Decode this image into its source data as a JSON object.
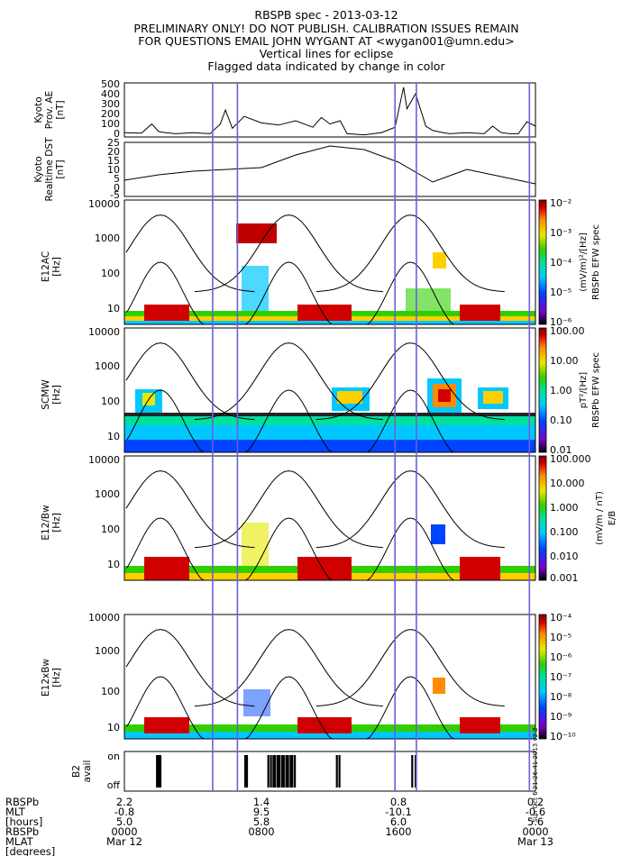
{
  "header": {
    "lines": [
      "RBSPB spec - 2013-03-12",
      "PRELIMINARY ONLY! DO NOT PUBLISH. CALIBRATION ISSUES REMAIN",
      "FOR QUESTIONS EMAIL JOHN WYGANT AT <wygan001@umn.edu>",
      "Vertical lines for eclipse",
      "Flagged data indicated by change in color"
    ]
  },
  "colors": {
    "eclipse_line": "#6f5fd8",
    "trace": "#000000",
    "colormap": [
      "#000000",
      "#7a00c8",
      "#0044ff",
      "#00c8ff",
      "#00e0a0",
      "#30d000",
      "#e8e800",
      "#ff8c00",
      "#d00000",
      "#800000"
    ]
  },
  "chart_data": [
    {
      "type": "line",
      "panel": "kyoto-ae",
      "ylabel": [
        "Kyoto",
        "Prov. AE",
        "[nT]"
      ],
      "ylim": [
        0,
        500
      ],
      "yticks": [
        "500",
        "400",
        "300",
        "200",
        "100",
        "0"
      ],
      "x_hours": [
        0,
        1,
        1.6,
        2,
        2.4,
        3,
        4,
        5,
        5.6,
        5.9,
        6.3,
        7,
        8,
        9,
        10,
        11,
        11.5,
        12,
        12.6,
        13,
        14,
        15,
        15.8,
        16.3,
        16.5,
        17,
        17.6,
        18,
        18.6,
        19,
        20,
        21,
        21.5,
        22,
        22.5,
        23,
        23.5,
        24
      ],
      "values": [
        40,
        35,
        120,
        50,
        40,
        30,
        40,
        30,
        120,
        250,
        80,
        190,
        130,
        110,
        150,
        90,
        180,
        120,
        150,
        30,
        20,
        40,
        90,
        460,
        260,
        400,
        100,
        60,
        40,
        30,
        40,
        30,
        100,
        40,
        30,
        30,
        140,
        100
      ]
    },
    {
      "type": "line",
      "panel": "kyoto-dst",
      "ylabel": [
        "Kyoto",
        "Realtime DST",
        "[nT]"
      ],
      "ylim": [
        -5,
        25
      ],
      "yticks": [
        "25",
        "20",
        "15",
        "10",
        "5",
        "0",
        "-5"
      ],
      "x_hours": [
        0,
        2,
        4,
        6,
        8,
        10,
        12,
        14,
        16,
        18,
        20,
        22,
        24
      ],
      "values": [
        4,
        7,
        9,
        10,
        11,
        18,
        23,
        21,
        14,
        3,
        10,
        6,
        2
      ]
    },
    {
      "type": "heatmap",
      "panel": "e12ac",
      "ylabel": [
        "E12AC",
        "[Hz]"
      ],
      "yticks": [
        "10000",
        "1000",
        "100",
        "10"
      ],
      "colorbar": {
        "unit": "(mV/m)²/[Hz]",
        "title": "RBSPb EFW spec",
        "ticks": [
          "10⁻²",
          "10⁻³",
          "10⁻⁴",
          "10⁻⁵",
          "10⁻⁶"
        ]
      }
    },
    {
      "type": "heatmap",
      "panel": "scmw",
      "ylabel": [
        "SCMW",
        "[Hz]"
      ],
      "yticks": [
        "10000",
        "1000",
        "100",
        "10"
      ],
      "colorbar": {
        "unit": "pT²/[Hz]",
        "title": "RBSPb EFW spec",
        "ticks": [
          "100.00",
          "10.00",
          "1.00",
          "0.10",
          "0.01"
        ]
      }
    },
    {
      "type": "heatmap",
      "panel": "e12-over-bw",
      "ylabel": [
        "E12/Bw",
        "[Hz]"
      ],
      "yticks": [
        "10000",
        "1000",
        "100",
        "10"
      ],
      "colorbar": {
        "unit": "(mV/m / nT)",
        "title": "E/B",
        "ticks": [
          "100.000",
          "10.000",
          "1.000",
          "0.100",
          "0.010",
          "0.001"
        ]
      }
    },
    {
      "type": "heatmap",
      "panel": "e12xbw",
      "ylabel": [
        "E12xBw",
        "[Hz]"
      ],
      "yticks": [
        "10000",
        "1000",
        "100",
        "10"
      ],
      "colorbar": {
        "ticks": [
          "10⁻⁴",
          "10⁻⁵",
          "10⁻⁶",
          "10⁻⁷",
          "10⁻⁸",
          "10⁻⁹",
          "10⁻¹⁰"
        ]
      }
    },
    {
      "type": "bar",
      "panel": "b2-avail",
      "ylabel": [
        "B2",
        "avail"
      ],
      "yticks": [
        "on",
        "off"
      ],
      "avail_hours": [
        1.9,
        2.0,
        2.1,
        7.05,
        7.15,
        8.4,
        8.55,
        8.7,
        8.8,
        8.95,
        9.05,
        9.2,
        9.3,
        9.45,
        9.55,
        9.7,
        9.8,
        9.95,
        12.4,
        12.55,
        16.8,
        17.0
      ]
    }
  ],
  "eclipse_hours": [
    5.15,
    6.6,
    15.8,
    17.05,
    23.65
  ],
  "side_stamp": "Sun Oct  6 21:26:41 2013 v2.2",
  "ephemeris": {
    "labels": [
      "RBSPb",
      "MLT",
      "[hours]",
      "RBSPb",
      "MLAT",
      "[degrees]"
    ],
    "columns": [
      {
        "values": [
          "2.2",
          "-0.8",
          "5.0",
          "0000",
          "Mar 12"
        ]
      },
      {
        "values": [
          "1.4",
          "9.5",
          "5.8",
          "0800",
          ""
        ]
      },
      {
        "values": [
          "0.8",
          "-10.1",
          "6.0",
          "1600",
          ""
        ]
      },
      {
        "values": [
          "0.2",
          "-0.6",
          "5.6",
          "0000",
          "Mar 13"
        ]
      }
    ]
  }
}
